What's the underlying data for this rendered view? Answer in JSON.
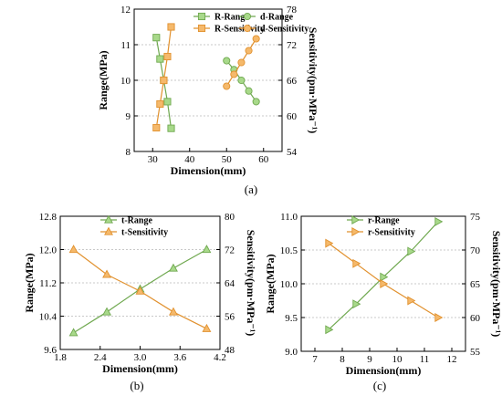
{
  "colors": {
    "range": "#6fa84f",
    "sensitivity": "#e1912e",
    "range_fill": "#a8d98a",
    "sensitivity_fill": "#f5b96b"
  },
  "chart_data": [
    {
      "id": "a",
      "type": "line",
      "panel_label": "(a)",
      "xlabel": "Dimension(mm)",
      "ylabel": "Range(MPa)",
      "y2label": "Sensitivity(pm·MPa⁻¹)",
      "xlim": [
        25,
        65
      ],
      "ylim": [
        8,
        12
      ],
      "y2lim": [
        54,
        78
      ],
      "xticks": [
        "30",
        "40",
        "50",
        "60"
      ],
      "yticks": [
        "8",
        "9",
        "10",
        "11",
        "12"
      ],
      "y2ticks": [
        "54",
        "60",
        "66",
        "72",
        "78"
      ],
      "legend": {
        "position": "top-right",
        "columns": 2
      },
      "series": [
        {
          "name": "R-Range",
          "axis": "left",
          "marker": "square",
          "role": "range",
          "x": [
            31,
            32,
            33,
            34,
            35
          ],
          "y": [
            11.2,
            10.6,
            10.0,
            9.4,
            8.65
          ]
        },
        {
          "name": "R-Sensitivity",
          "axis": "right",
          "marker": "square",
          "role": "sensitivity",
          "x": [
            31,
            32,
            33,
            34,
            35
          ],
          "y": [
            58.0,
            62.0,
            66.0,
            70.0,
            75.0
          ]
        },
        {
          "name": "d-Range",
          "axis": "left",
          "marker": "circle",
          "role": "range",
          "x": [
            50,
            52,
            54,
            56,
            58
          ],
          "y": [
            10.55,
            10.3,
            10.0,
            9.7,
            9.4
          ]
        },
        {
          "name": "d-Sensitivity",
          "axis": "right",
          "marker": "circle",
          "role": "sensitivity",
          "x": [
            50,
            52,
            54,
            56,
            58
          ],
          "y": [
            65.0,
            67.0,
            69.0,
            71.0,
            73.0
          ]
        }
      ]
    },
    {
      "id": "b",
      "type": "line",
      "panel_label": "(b)",
      "xlabel": "Dimension(mm)",
      "ylabel": "Range(MPa)",
      "y2label": "Sensitivity(pm·MPa⁻¹)",
      "xlim": [
        1.8,
        4.2
      ],
      "ylim": [
        9.6,
        12.8
      ],
      "y2lim": [
        48,
        80
      ],
      "xticks": [
        "1.8",
        "2.4",
        "3.0",
        "3.6",
        "4.2"
      ],
      "yticks": [
        "9.6",
        "10.4",
        "11.2",
        "12.0",
        "12.8"
      ],
      "y2ticks": [
        "48",
        "56",
        "64",
        "72",
        "80"
      ],
      "legend": {
        "position": "top-center",
        "columns": 1
      },
      "series": [
        {
          "name": "t-Range",
          "axis": "left",
          "marker": "triangle-up",
          "role": "range",
          "x": [
            2.0,
            2.5,
            3.0,
            3.5,
            4.0
          ],
          "y": [
            10.0,
            10.5,
            11.05,
            11.55,
            12.0
          ]
        },
        {
          "name": "t-Sensitivity",
          "axis": "right",
          "marker": "triangle-up",
          "role": "sensitivity",
          "x": [
            2.0,
            2.5,
            3.0,
            3.5,
            4.0
          ],
          "y": [
            72.0,
            66.0,
            62.0,
            57.0,
            53.0
          ]
        }
      ]
    },
    {
      "id": "c",
      "type": "line",
      "panel_label": "(c)",
      "xlabel": "Dimension(mm)",
      "ylabel": "Range(MPa)",
      "y2label": "Sensitivity(pm·MPa⁻¹)",
      "xlim": [
        6.5,
        12.5
      ],
      "ylim": [
        9.0,
        11.0
      ],
      "y2lim": [
        55,
        75
      ],
      "xticks": [
        "7",
        "8",
        "9",
        "10",
        "11",
        "12"
      ],
      "yticks": [
        "9.0",
        "9.5",
        "10.0",
        "10.5",
        "11.0"
      ],
      "y2ticks": [
        "55",
        "60",
        "65",
        "70",
        "75"
      ],
      "legend": {
        "position": "top-center",
        "columns": 1
      },
      "series": [
        {
          "name": "r-Range",
          "axis": "left",
          "marker": "triangle-right",
          "role": "range",
          "x": [
            7.5,
            8.5,
            9.5,
            10.5,
            11.5
          ],
          "y": [
            9.32,
            9.7,
            10.1,
            10.48,
            10.92
          ]
        },
        {
          "name": "r-Sensitivity",
          "axis": "right",
          "marker": "triangle-right",
          "role": "sensitivity",
          "x": [
            7.5,
            8.5,
            9.5,
            10.5,
            11.5
          ],
          "y": [
            71.0,
            68.0,
            65.0,
            62.5,
            60.0
          ]
        }
      ]
    }
  ]
}
